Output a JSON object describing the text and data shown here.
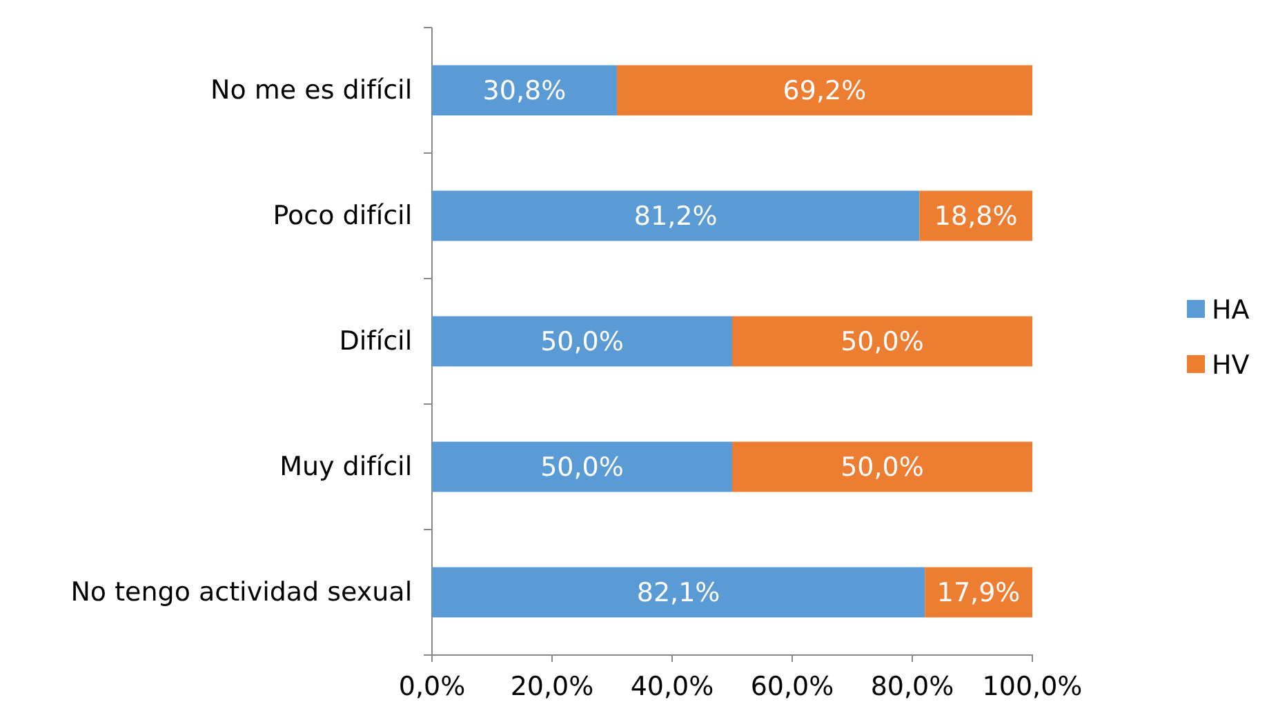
{
  "chart_data": {
    "type": "bar",
    "orientation": "horizontal",
    "stacked": true,
    "categories": [
      "No me es difícil",
      "Poco difícil",
      "Difícil",
      "Muy difícil",
      "No tengo actividad sexual"
    ],
    "series": [
      {
        "name": "HA",
        "color": "#5b9bd5",
        "values": [
          30.8,
          81.2,
          50.0,
          50.0,
          82.1
        ],
        "value_labels": [
          "30,8%",
          "81,2%",
          "50,0%",
          "50,0%",
          "82,1%"
        ]
      },
      {
        "name": "HV",
        "color": "#ed7d31",
        "values": [
          69.2,
          18.8,
          50.0,
          50.0,
          17.9
        ],
        "value_labels": [
          "69,2%",
          "18,8%",
          "50,0%",
          "50,0%",
          "17,9%"
        ]
      }
    ],
    "xlim": [
      0,
      100
    ],
    "xticks": [
      {
        "value": 0,
        "label": "0,0%"
      },
      {
        "value": 20,
        "label": "20,0%"
      },
      {
        "value": 40,
        "label": "40,0%"
      },
      {
        "value": 60,
        "label": "60,0%"
      },
      {
        "value": 80,
        "label": "80,0%"
      },
      {
        "value": 100,
        "label": "100,0%"
      }
    ],
    "grid": false,
    "legend": "right"
  }
}
